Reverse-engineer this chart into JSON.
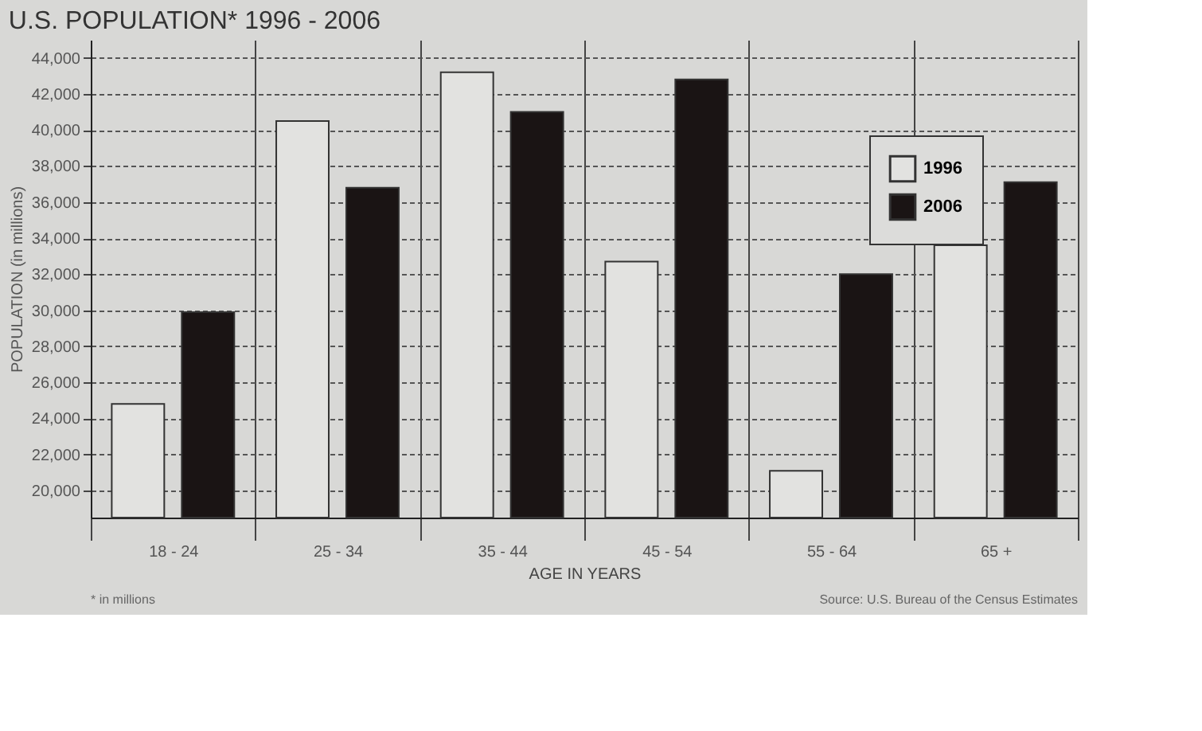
{
  "chart_data": {
    "type": "bar",
    "title": "U.S. POPULATION* 1996 - 2006",
    "xlabel": "AGE IN YEARS",
    "ylabel": "POPULATION (in millions)",
    "categories": [
      "18 - 24",
      "25 - 34",
      "35 - 44",
      "45 - 54",
      "55 - 64",
      "65 +"
    ],
    "series": [
      {
        "name": "1996",
        "color": "#e2e2e0",
        "values": [
          24800,
          40500,
          43200,
          32700,
          21100,
          33600
        ]
      },
      {
        "name": "2006",
        "color": "#1a1414",
        "values": [
          29900,
          36800,
          41000,
          42800,
          32000,
          37100
        ]
      }
    ],
    "ylim": [
      18500,
      45000
    ],
    "yticks": [
      {
        "value": 20000,
        "label": "20,000"
      },
      {
        "value": 22000,
        "label": "22,000"
      },
      {
        "value": 24000,
        "label": "24,000"
      },
      {
        "value": 26000,
        "label": "26,000"
      },
      {
        "value": 28000,
        "label": "28,000"
      },
      {
        "value": 30000,
        "label": "30,000"
      },
      {
        "value": 32000,
        "label": "32,000"
      },
      {
        "value": 34000,
        "label": "34,000"
      },
      {
        "value": 36000,
        "label": "36,000"
      },
      {
        "value": 38000,
        "label": "38,000"
      },
      {
        "value": 40000,
        "label": "40,000"
      },
      {
        "value": 42000,
        "label": "42,000"
      },
      {
        "value": 44000,
        "label": "44,000"
      }
    ],
    "grid": true,
    "legend": "top right",
    "annotations": [
      "* in millions",
      "Source: U.S. Bureau of the Census Estimates"
    ]
  }
}
